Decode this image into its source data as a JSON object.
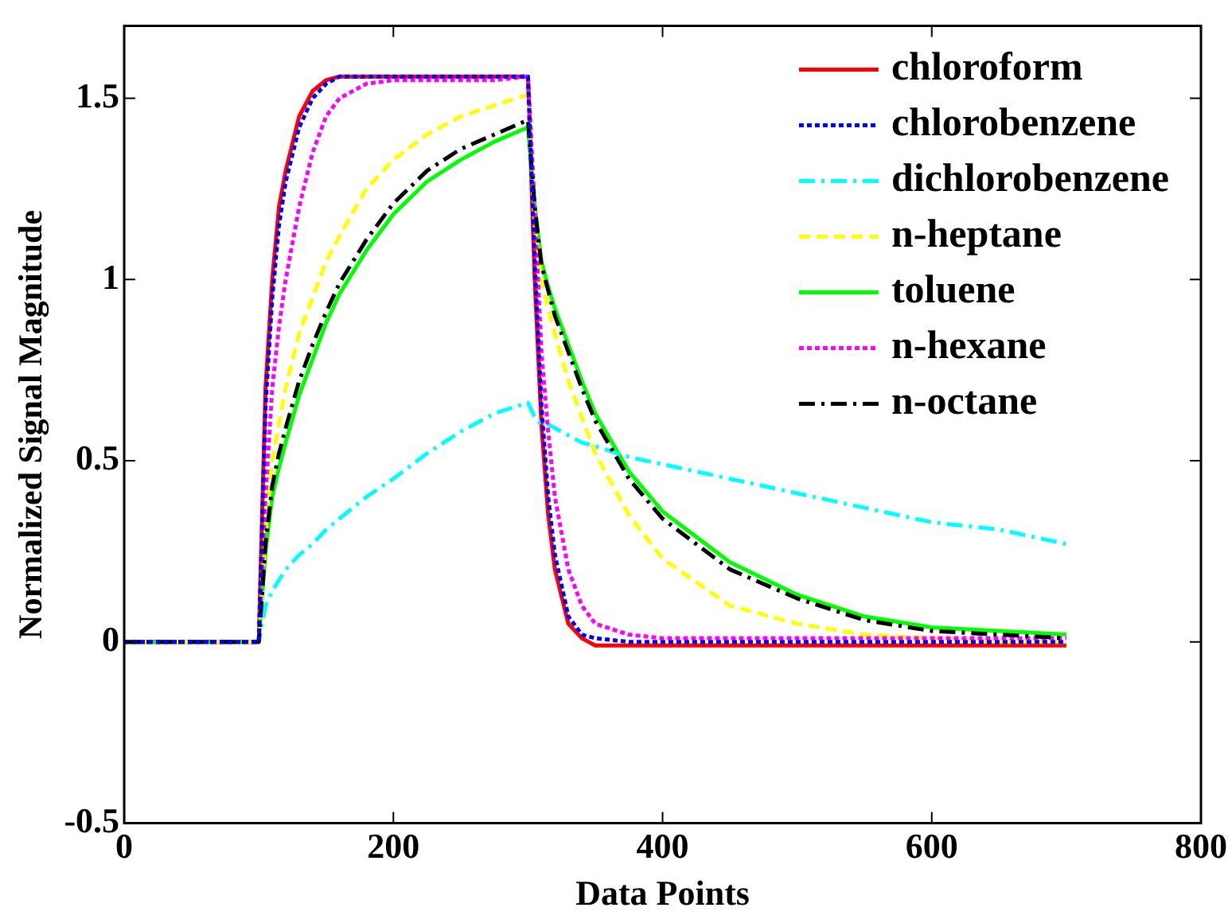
{
  "chart_data": {
    "type": "line",
    "xlabel": "Data Points",
    "ylabel": "Normalized Signal Magnitude",
    "x": [
      0,
      100,
      105,
      110,
      115,
      120,
      130,
      140,
      150,
      160,
      180,
      200,
      225,
      250,
      275,
      300,
      305,
      310,
      315,
      320,
      330,
      340,
      350,
      375,
      400,
      450,
      500,
      550,
      600,
      650,
      700
    ],
    "xlim": [
      0,
      800
    ],
    "xticks": [
      0,
      200,
      400,
      600,
      800
    ],
    "ylim": [
      -0.5,
      1.7
    ],
    "yticks": [
      -0.5,
      0,
      0.5,
      1,
      1.5
    ],
    "grid": false,
    "legend": "top right",
    "marker": "none",
    "series": [
      {
        "name": "chloroform",
        "color": "#ff0000",
        "line_style": "solid",
        "values": [
          0,
          0,
          0.7,
          1.0,
          1.2,
          1.3,
          1.45,
          1.52,
          1.55,
          1.56,
          1.56,
          1.56,
          1.56,
          1.56,
          1.56,
          1.56,
          1.0,
          0.6,
          0.35,
          0.2,
          0.05,
          0.01,
          -0.01,
          -0.01,
          -0.01,
          -0.01,
          -0.01,
          -0.01,
          -0.01,
          -0.01,
          -0.01
        ]
      },
      {
        "name": "chlorobenzene",
        "color": "#0000ff",
        "line_style": "dotted",
        "values": [
          0,
          0,
          0.65,
          0.95,
          1.15,
          1.27,
          1.42,
          1.5,
          1.54,
          1.56,
          1.56,
          1.56,
          1.56,
          1.56,
          1.56,
          1.56,
          1.05,
          0.65,
          0.4,
          0.24,
          0.07,
          0.02,
          0.01,
          0,
          0,
          0,
          0,
          0,
          0,
          0,
          0
        ]
      },
      {
        "name": "dichlorobenzene",
        "color": "#00ffff",
        "line_style": "dashdot",
        "values": [
          0,
          0,
          0.1,
          0.14,
          0.17,
          0.2,
          0.24,
          0.27,
          0.31,
          0.34,
          0.4,
          0.45,
          0.52,
          0.58,
          0.63,
          0.66,
          0.62,
          0.6,
          0.6,
          0.59,
          0.57,
          0.55,
          0.54,
          0.51,
          0.49,
          0.45,
          0.41,
          0.37,
          0.33,
          0.31,
          0.27
        ]
      },
      {
        "name": "n-heptane",
        "color": "#ffff00",
        "line_style": "dashed",
        "values": [
          0,
          0,
          0.3,
          0.5,
          0.6,
          0.7,
          0.85,
          0.95,
          1.05,
          1.12,
          1.25,
          1.33,
          1.4,
          1.45,
          1.48,
          1.51,
          1.15,
          1.0,
          0.92,
          0.85,
          0.72,
          0.62,
          0.52,
          0.35,
          0.23,
          0.1,
          0.05,
          0.02,
          0.01,
          0,
          0
        ]
      },
      {
        "name": "toluene",
        "color": "#00ff00",
        "line_style": "solid",
        "values": [
          0,
          0,
          0.25,
          0.4,
          0.48,
          0.55,
          0.68,
          0.78,
          0.88,
          0.96,
          1.08,
          1.18,
          1.27,
          1.33,
          1.38,
          1.42,
          1.2,
          1.05,
          0.98,
          0.92,
          0.82,
          0.72,
          0.63,
          0.47,
          0.36,
          0.22,
          0.13,
          0.07,
          0.04,
          0.03,
          0.02
        ]
      },
      {
        "name": "n-hexane",
        "color": "#ff00ff",
        "line_style": "dotted",
        "values": [
          0,
          0,
          0.4,
          0.7,
          0.87,
          1.0,
          1.2,
          1.35,
          1.45,
          1.5,
          1.54,
          1.55,
          1.55,
          1.55,
          1.55,
          1.56,
          1.2,
          0.8,
          0.58,
          0.4,
          0.2,
          0.1,
          0.05,
          0.02,
          0.01,
          0.01,
          0.01,
          0.01,
          0.01,
          0.01,
          0.01
        ]
      },
      {
        "name": "n-octane",
        "color": "#000000",
        "line_style": "dashdot",
        "values": [
          0,
          0,
          0.27,
          0.43,
          0.52,
          0.59,
          0.72,
          0.82,
          0.91,
          0.99,
          1.11,
          1.21,
          1.3,
          1.36,
          1.4,
          1.44,
          1.2,
          1.04,
          0.97,
          0.9,
          0.8,
          0.7,
          0.61,
          0.45,
          0.34,
          0.2,
          0.12,
          0.06,
          0.03,
          0.02,
          0.01
        ]
      }
    ]
  }
}
